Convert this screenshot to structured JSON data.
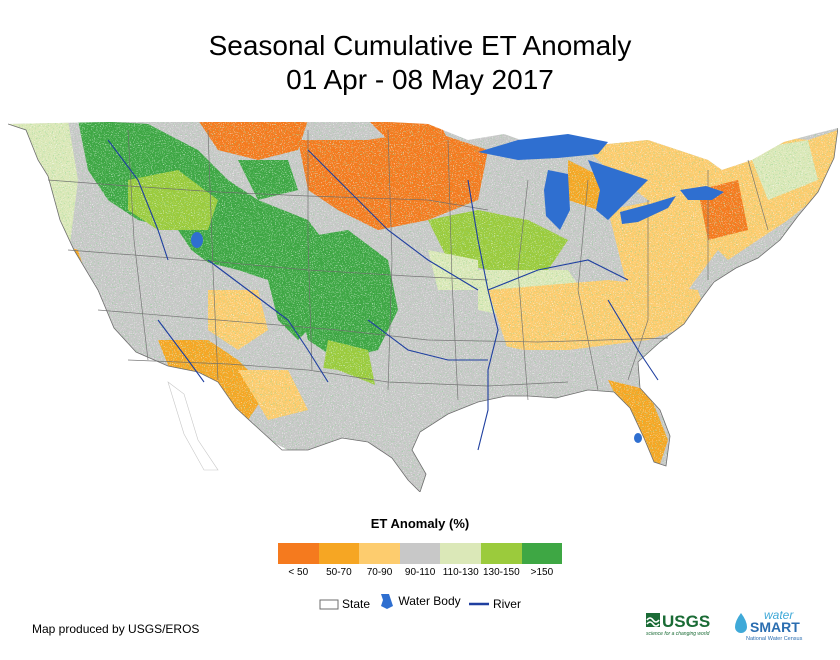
{
  "title": {
    "line1": "Seasonal Cumulative ET Anomaly",
    "line2": "01 Apr - 08 May 2017"
  },
  "legend": {
    "title": "ET Anomaly (%)",
    "classes": [
      {
        "label": "< 50",
        "color": "#f57a1e"
      },
      {
        "label": "50-70",
        "color": "#f6a623"
      },
      {
        "label": "70-90",
        "color": "#fdcc6e"
      },
      {
        "label": "90-110",
        "color": "#c8c8c8"
      },
      {
        "label": "110-130",
        "color": "#dbe8b8"
      },
      {
        "label": "130-150",
        "color": "#9bcb3c"
      },
      {
        "label": ">150",
        "color": "#3ea744"
      }
    ]
  },
  "key": {
    "state_label": "State",
    "water_label": "Water Body",
    "river_label": "River"
  },
  "credit": "Map produced by USGS/EROS",
  "logos": {
    "usgs": "USGS",
    "usgs_tagline": "science for a changing world",
    "watersmart_top": "water",
    "watersmart_main": "SMART",
    "watersmart_sub": "National Water Census"
  },
  "colors": {
    "water": "#2f6fd0",
    "river": "#1f3fa0",
    "state_line": "#6e6e6e"
  }
}
